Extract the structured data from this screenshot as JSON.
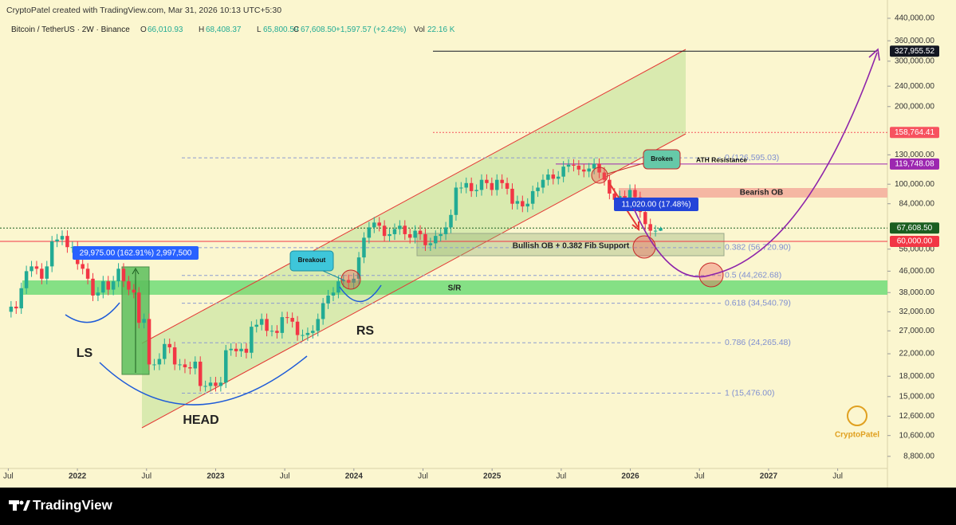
{
  "header": {
    "attribution": "CryptoPatel created with TradingView.com, Mar 31, 2026 10:13 UTC+5:30",
    "symbol": "Bitcoin / TetherUS · 2W · Binance",
    "ohlc": [
      {
        "key": "O",
        "value": "66,010.93"
      },
      {
        "key": "H",
        "value": "68,408.37"
      },
      {
        "key": "L",
        "value": "65,800.59"
      },
      {
        "key": "C",
        "value": "67,608.50"
      }
    ],
    "change": "+1,597.57 (+2.42%)",
    "volume_key": "Vol",
    "volume": "22.16 K"
  },
  "chart_data": {
    "type": "candlestick",
    "x": [
      2021.52,
      2021.557,
      2021.594,
      2021.631,
      2021.668,
      2021.705,
      2021.742,
      2021.779,
      2021.816,
      2021.853,
      2021.89,
      2021.927,
      2021.964,
      2022.001,
      2022.038,
      2022.075,
      2022.112,
      2022.149,
      2022.186,
      2022.223,
      2022.26,
      2022.297,
      2022.334,
      2022.371,
      2022.408,
      2022.445,
      2022.482,
      2022.519,
      2022.556,
      2022.593,
      2022.63,
      2022.667,
      2022.704,
      2022.741,
      2022.778,
      2022.815,
      2022.852,
      2022.889,
      2022.926,
      2022.963,
      2023,
      2023.037,
      2023.074,
      2023.111,
      2023.148,
      2023.185,
      2023.222,
      2023.259,
      2023.296,
      2023.333,
      2023.37,
      2023.407,
      2023.444,
      2023.481,
      2023.518,
      2023.555,
      2023.592,
      2023.629,
      2023.666,
      2023.703,
      2023.74,
      2023.777,
      2023.814,
      2023.851,
      2023.888,
      2023.925,
      2023.962,
      2023.999,
      2024.036,
      2024.073,
      2024.11,
      2024.147,
      2024.184,
      2024.221,
      2024.258,
      2024.295,
      2024.332,
      2024.369,
      2024.406,
      2024.443,
      2024.48,
      2024.517,
      2024.554,
      2024.591,
      2024.628,
      2024.665,
      2024.702,
      2024.739,
      2024.776,
      2024.813,
      2024.85,
      2024.887,
      2024.924,
      2024.961,
      2024.998,
      2025.035,
      2025.072,
      2025.109,
      2025.146,
      2025.183,
      2025.22,
      2025.257,
      2025.294,
      2025.331,
      2025.368,
      2025.405,
      2025.442,
      2025.479,
      2025.516,
      2025.553,
      2025.59,
      2025.627,
      2025.664,
      2025.701,
      2025.738,
      2025.775,
      2025.812,
      2025.849,
      2025.886,
      2025.923,
      2025.96,
      2025.997,
      2026.034,
      2026.071,
      2026.108,
      2026.145,
      2026.182,
      2026.219
    ],
    "open": [
      32000,
      33500,
      33000,
      39500,
      46000,
      48000,
      47000,
      43000,
      48000,
      60000,
      61000,
      63000,
      57000,
      57000,
      49000,
      47000,
      43000,
      37000,
      38000,
      42000,
      39000,
      42000,
      47000,
      42000,
      39000,
      38000,
      29000,
      30000,
      20000,
      20000,
      21000,
      24000,
      23300,
      20000,
      20000,
      19500,
      19300,
      20500,
      16500,
      16500,
      17000,
      16500,
      17000,
      22700,
      23000,
      22500,
      23000,
      22200,
      28000,
      28500,
      30000,
      27000,
      27000,
      26500,
      30500,
      30300,
      29300,
      26000,
      26000,
      26500,
      27000,
      30000,
      34500,
      37000,
      38000,
      42000,
      42500,
      41500,
      43000,
      52000,
      62000,
      68000,
      71000,
      69000,
      63000,
      64000,
      67000,
      69000,
      64000,
      62000,
      66000,
      64000,
      58000,
      59000,
      63000,
      64000,
      68000,
      76000,
      97000,
      97000,
      101000,
      94000,
      95000,
      104000,
      101000,
      95000,
      104000,
      101000,
      96000,
      84000,
      86000,
      82000,
      84000,
      94000,
      97000,
      104000,
      109000,
      105000,
      107000,
      117000,
      119000,
      118000,
      114000,
      112000,
      115000,
      120000,
      111000,
      104000,
      92000,
      87000,
      90000,
      88000,
      95000,
      89000,
      78000,
      70000,
      66000,
      66010.93
    ],
    "high": [
      35200,
      35200,
      41500,
      48300,
      50400,
      50400,
      49400,
      50400,
      63000,
      64100,
      66200,
      66200,
      59900,
      59900,
      51500,
      49400,
      45200,
      39900,
      44100,
      44100,
      44100,
      49400,
      49400,
      44100,
      41000,
      39900,
      31500,
      31500,
      21000,
      22100,
      25200,
      25200,
      24500,
      21000,
      21000,
      20500,
      21500,
      21500,
      17300,
      17900,
      17900,
      17900,
      23800,
      24200,
      24200,
      24200,
      24200,
      29400,
      29900,
      31500,
      31500,
      28400,
      28400,
      32000,
      32000,
      31800,
      30800,
      27300,
      27800,
      28400,
      31500,
      36200,
      38900,
      39900,
      44100,
      44600,
      44600,
      45200,
      54600,
      65100,
      71400,
      74600,
      74600,
      72500,
      67200,
      70400,
      72500,
      72500,
      67200,
      69300,
      69300,
      67200,
      62000,
      66200,
      67200,
      71400,
      79800,
      101900,
      101900,
      106100,
      106100,
      99800,
      109200,
      109200,
      106100,
      109200,
      109200,
      106100,
      100800,
      90300,
      90300,
      88200,
      98700,
      101900,
      109200,
      114500,
      114500,
      112400,
      122900,
      125000,
      125000,
      123900,
      119700,
      120800,
      126000,
      126000,
      116600,
      109200,
      96600,
      94500,
      94500,
      99800,
      99800,
      93500,
      81900,
      73500,
      69300,
      68408.37
    ],
    "low": [
      30400,
      31400,
      31400,
      37500,
      43700,
      44700,
      40900,
      40900,
      45600,
      57000,
      58000,
      54200,
      54200,
      46600,
      44700,
      40900,
      35200,
      35200,
      36100,
      37100,
      37100,
      39900,
      39900,
      37100,
      36100,
      27600,
      27600,
      19000,
      19000,
      19000,
      20000,
      22100,
      19000,
      19000,
      18500,
      18300,
      18300,
      15700,
      15700,
      15700,
      15700,
      15700,
      16200,
      21600,
      21400,
      21400,
      21100,
      21100,
      26600,
      27100,
      25700,
      25700,
      25200,
      25200,
      28800,
      27800,
      24700,
      24700,
      24700,
      25200,
      25700,
      28500,
      32800,
      35200,
      36100,
      39900,
      39400,
      39400,
      40900,
      49400,
      58900,
      64600,
      65600,
      59900,
      59900,
      60800,
      63700,
      60800,
      58900,
      58900,
      60800,
      55100,
      55100,
      56100,
      59900,
      60800,
      64600,
      72200,
      92200,
      92200,
      89300,
      89300,
      90300,
      96000,
      90300,
      90300,
      96000,
      91200,
      79800,
      79800,
      77900,
      77900,
      79800,
      89300,
      92200,
      98800,
      99800,
      99800,
      101700,
      111200,
      112100,
      108300,
      106400,
      106400,
      109300,
      105500,
      98800,
      87400,
      82700,
      82700,
      83600,
      83600,
      84600,
      74100,
      66500,
      62700,
      62700,
      65800.59
    ],
    "close": [
      33500,
      33000,
      39500,
      46000,
      48000,
      47000,
      43000,
      48000,
      60000,
      61000,
      63000,
      57000,
      57000,
      49000,
      47000,
      43000,
      37000,
      38000,
      42000,
      39000,
      42000,
      47000,
      42000,
      39000,
      38000,
      29000,
      30000,
      20000,
      20000,
      21000,
      24000,
      23300,
      20000,
      20000,
      19500,
      19300,
      20500,
      16500,
      16500,
      17000,
      16500,
      17000,
      22700,
      23000,
      22500,
      23000,
      22200,
      28000,
      28500,
      30000,
      27000,
      27000,
      26500,
      30500,
      30300,
      29300,
      26000,
      26000,
      26500,
      27000,
      30000,
      34500,
      37000,
      38000,
      42000,
      42500,
      41500,
      43000,
      52000,
      62000,
      68000,
      71000,
      69000,
      63000,
      64000,
      67000,
      69000,
      64000,
      62000,
      66000,
      64000,
      58000,
      59000,
      63000,
      64000,
      68000,
      76000,
      97000,
      97000,
      101000,
      94000,
      95000,
      104000,
      101000,
      95000,
      104000,
      101000,
      96000,
      84000,
      86000,
      82000,
      84000,
      94000,
      97000,
      104000,
      109000,
      105000,
      107000,
      117000,
      119000,
      118000,
      114000,
      112000,
      115000,
      120000,
      111000,
      104000,
      92000,
      87000,
      90000,
      88000,
      95000,
      89000,
      78000,
      70000,
      66000,
      66010.93,
      67608.5
    ],
    "up_color": "#22ab94",
    "down_color": "#f23645",
    "xlim": [
      2021.44,
      2027.86
    ],
    "xticks": [
      {
        "value": 2021.5,
        "label": "Jul"
      },
      2022,
      {
        "value": 2022.5,
        "label": "Jul"
      },
      2023,
      {
        "value": 2023.5,
        "label": "Jul"
      },
      2024,
      {
        "value": 2024.5,
        "label": "Jul"
      },
      2025,
      {
        "value": 2025.5,
        "label": "Jul"
      },
      2026,
      {
        "value": 2026.5,
        "label": "Jul"
      },
      2027,
      {
        "value": 2027.5,
        "label": "Jul"
      }
    ],
    "ylim": [
      7900,
      443000
    ],
    "log_y": true,
    "yticks": [
      {
        "value": 440000,
        "label": "440,000.00"
      },
      {
        "value": 360000,
        "label": "360,000.00"
      },
      {
        "value": 300000,
        "label": "300,000.00"
      },
      {
        "value": 240000,
        "label": "240,000.00"
      },
      {
        "value": 200000,
        "label": "200,000.00"
      },
      {
        "value": 130000,
        "label": "130,000.00"
      },
      {
        "value": 100000,
        "label": "100,000.00"
      },
      {
        "value": 84000,
        "label": "84,000.00"
      },
      {
        "value": 56000,
        "label": "56,000.00"
      },
      {
        "value": 46000,
        "label": "46,000.00"
      },
      {
        "value": 38000,
        "label": "38,000.00"
      },
      {
        "value": 32000,
        "label": "32,000.00"
      },
      {
        "value": 27000,
        "label": "27,000.00"
      },
      {
        "value": 22000,
        "label": "22,000.00"
      },
      {
        "value": 18000,
        "label": "18,000.00"
      },
      {
        "value": 15000,
        "label": "15,000.00"
      },
      {
        "value": 12600,
        "label": "12,600.00"
      },
      {
        "value": 10600,
        "label": "10,600.00"
      },
      {
        "value": 8800,
        "label": "8,800.00"
      }
    ],
    "price_lines": [
      {
        "label": "327,955.52",
        "value": 327955.52,
        "color": "#131722"
      },
      {
        "label": "158,764.41",
        "value": 158764.41,
        "color": "#f7525f"
      },
      {
        "label": "119,748.08",
        "value": 119748.08,
        "color": "#9c27b0"
      },
      {
        "label": "67,608.50",
        "value": 67608.5,
        "color": "#1b5e20"
      },
      {
        "label": "60,000.00",
        "value": 60000,
        "color": "#f23645"
      }
    ],
    "fib_levels": [
      {
        "label": "0 (126,595.03)",
        "value": 126595.03
      },
      {
        "label": "0.382 (56,720.90)",
        "value": 56720.9
      },
      {
        "label": "0.5 (44,262.68)",
        "value": 44262.68
      },
      {
        "label": "0.618 (34,540.79)",
        "value": 34540.79
      },
      {
        "label": "0.786 (24,265.48)",
        "value": 24265.48
      },
      {
        "label": "1 (15,476.00)",
        "value": 15476
      }
    ],
    "annotations": {
      "measure": "29,975.00 (162.91%) 2,997,500",
      "breakout": "Breakout",
      "broken": "Broken",
      "ath": "ATH Resistance",
      "bearish_ob": "Bearish OB",
      "move": "11,020.00 (17.48%)",
      "bullish_ob": "Bullish OB + 0.382 Fib Support",
      "sr": "S/R",
      "ls": "LS",
      "head": "HEAD",
      "rs": "RS",
      "watermark": "CryptoPatel"
    }
  },
  "footer": {
    "brand": "TradingView"
  }
}
